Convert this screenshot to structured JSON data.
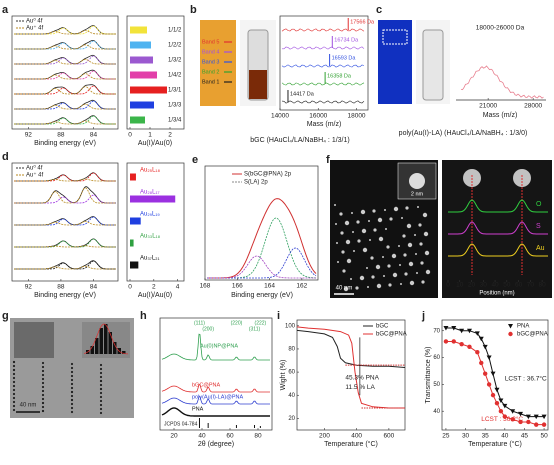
{
  "panels": {
    "a": {
      "label": "a",
      "legend": [
        "Au⁰ 4f",
        "Au⁺ 4f"
      ],
      "xlim": [
        94,
        81
      ],
      "xticks": [
        92,
        88,
        84
      ],
      "xlabel": "Binding energy (eV)",
      "categories": [
        "1/1/2",
        "1/2/2",
        "1/3/2",
        "1/4/2",
        "1/3/1",
        "1/3/3",
        "1/3/4"
      ],
      "values": [
        0.85,
        1.05,
        1.15,
        1.35,
        1.85,
        1.2,
        0.75
      ],
      "colors": [
        "#f2e33a",
        "#4fb3f0",
        "#9b59d0",
        "#e23fa9",
        "#e62020",
        "#1f3fe0",
        "#3bb54a"
      ],
      "ratio_lim": [
        0,
        2.5
      ],
      "ratio_ticks": [
        0,
        1,
        2
      ],
      "ratio_label": "Au(I)/Au(0)"
    },
    "b": {
      "label": "b",
      "bands": [
        "Band 5",
        "Band 4",
        "Band 3",
        "Band 2",
        "Band 1"
      ],
      "band_colors": [
        "#e03030",
        "#a050e0",
        "#3050e0",
        "#30a030",
        "#202020"
      ],
      "masses": [
        17566,
        16734,
        16593,
        16358,
        14417
      ],
      "mass_labels": [
        "17566 Da",
        "16734 Da",
        "16593 Da",
        "16358 Da",
        "14417 Da"
      ],
      "xlim": [
        14000,
        18600
      ],
      "xticks": [
        14000,
        16000,
        18000
      ],
      "xlabel": "Mass (m/z)",
      "caption": "bGC (HAuCl₄/LA/NaBH₄ : 1/3/1)"
    },
    "c": {
      "label": "c",
      "range_label": "18000-26000 Da",
      "xlim": [
        16000,
        30000
      ],
      "xticks": [
        21000,
        28000
      ],
      "xlabel": "Mass (m/z)",
      "caption": "poly(Au(I)-LA) (HAuCl₄/LA/NaBH₄ : 1/3/0)"
    },
    "d": {
      "label": "d",
      "legend": [
        "Au⁰ 4f",
        "Au⁺ 4f"
      ],
      "xlim": [
        94,
        81
      ],
      "xticks": [
        92,
        88,
        84
      ],
      "xlabel": "Binding energy (eV)",
      "categories": [
        "Au₂₅L₁₈",
        "Au₂₈L₁₇",
        "Au₂₉L₁₉",
        "Au₃₃L₁₈",
        "Au₃₇L₂₁"
      ],
      "values": [
        0.5,
        3.8,
        0.9,
        0.3,
        0.7
      ],
      "colors": [
        "#e62020",
        "#9b30e0",
        "#1f3fe0",
        "#2fa040",
        "#111111"
      ],
      "ratio_lim": [
        0,
        4.2
      ],
      "ratio_ticks": [
        0,
        2,
        4
      ],
      "ratio_label": "Au(I)/Au(0)"
    },
    "e": {
      "label": "e",
      "legend": [
        "S(bGC@PNA) 2p",
        "S(LA) 2p"
      ],
      "xlim": [
        168,
        161
      ],
      "xticks": [
        168,
        166,
        164,
        162
      ],
      "xlabel": "Binding energy (eV)"
    },
    "f": {
      "label": "f",
      "inset_scale": "2 nm",
      "scale": "40 nm",
      "elements": [
        "O",
        "S",
        "Au"
      ],
      "element_colors": [
        "#30d040",
        "#d040d0",
        "#f0d020"
      ],
      "xlim": [
        0,
        85
      ],
      "xticks": [
        0,
        10,
        20,
        30,
        40,
        50,
        60,
        70,
        80
      ],
      "xlabel": "Position (nm)"
    },
    "g": {
      "label": "g",
      "scale": "40 nm"
    },
    "h": {
      "label": "h",
      "planes": [
        "(111)",
        "(200)",
        "(220)",
        "(311)",
        "(222)"
      ],
      "plane_positions": [
        38.2,
        44.4,
        64.6,
        77.5,
        81.7
      ],
      "traces": [
        "Au(0)NP@PNA",
        "bGC@PNA",
        "poly(Au(I)-LA)@PNA",
        "PNA"
      ],
      "trace_colors": [
        "#30a050",
        "#e03030",
        "#3040d0",
        "#111111"
      ],
      "reference": "JCPDS 04-784",
      "xlim": [
        10,
        90
      ],
      "xticks": [
        20,
        40,
        60,
        80
      ],
      "xlabel": "2θ (degree)"
    },
    "i": {
      "label": "i",
      "xlim": [
        30,
        700
      ],
      "ylim": [
        10,
        105
      ],
      "xticks": [
        200,
        400,
        600
      ],
      "yticks": [
        20,
        40,
        60,
        80,
        100
      ],
      "xlabel": "Temperature (°C)",
      "ylabel": "Wight (%)",
      "annotations": [
        "45.3% PNA",
        "11.5 % LA"
      ],
      "series": [
        {
          "name": "bGC",
          "color": "#222222",
          "x": [
            30,
            100,
            200,
            250,
            280,
            300,
            330,
            400,
            500,
            600,
            700
          ],
          "values": [
            96,
            95,
            93,
            90,
            82,
            72,
            68,
            66,
            65,
            65,
            64
          ]
        },
        {
          "name": "bGC@PNA",
          "color": "#e03030",
          "x": [
            30,
            100,
            200,
            300,
            350,
            370,
            390,
            410,
            430,
            500,
            600,
            700
          ],
          "values": [
            99,
            98,
            97,
            95,
            92,
            85,
            60,
            42,
            33,
            30,
            29,
            29
          ]
        }
      ]
    },
    "j": {
      "label": "j",
      "xlim": [
        24,
        51
      ],
      "ylim": [
        33,
        74
      ],
      "xticks": [
        25,
        30,
        35,
        40,
        45,
        50
      ],
      "yticks": [
        40,
        50,
        60,
        70
      ],
      "xlabel": "Temperature (°C)",
      "ylabel": "Transmittance (%)",
      "annotations": [
        "LCST : 36.7°C",
        "LCST : 36.2°C"
      ],
      "series": [
        {
          "name": "PNA",
          "color": "#111111",
          "x": [
            25,
            27,
            29,
            31,
            33,
            34,
            35,
            36,
            37,
            38,
            39,
            40,
            42,
            44,
            46,
            48,
            50
          ],
          "values": [
            71,
            71,
            70,
            70,
            69,
            67,
            64,
            60,
            54,
            48,
            44,
            42,
            40,
            39,
            38,
            38,
            38
          ]
        },
        {
          "name": "bGC@PNA",
          "color": "#e03030",
          "x": [
            25,
            27,
            29,
            31,
            33,
            34,
            35,
            36,
            37,
            38,
            39,
            40,
            42,
            44,
            46,
            48,
            50
          ],
          "values": [
            66,
            66,
            65,
            64,
            62,
            58,
            54,
            50,
            46,
            43,
            40,
            38,
            37,
            36,
            36,
            35,
            35
          ]
        }
      ]
    }
  }
}
